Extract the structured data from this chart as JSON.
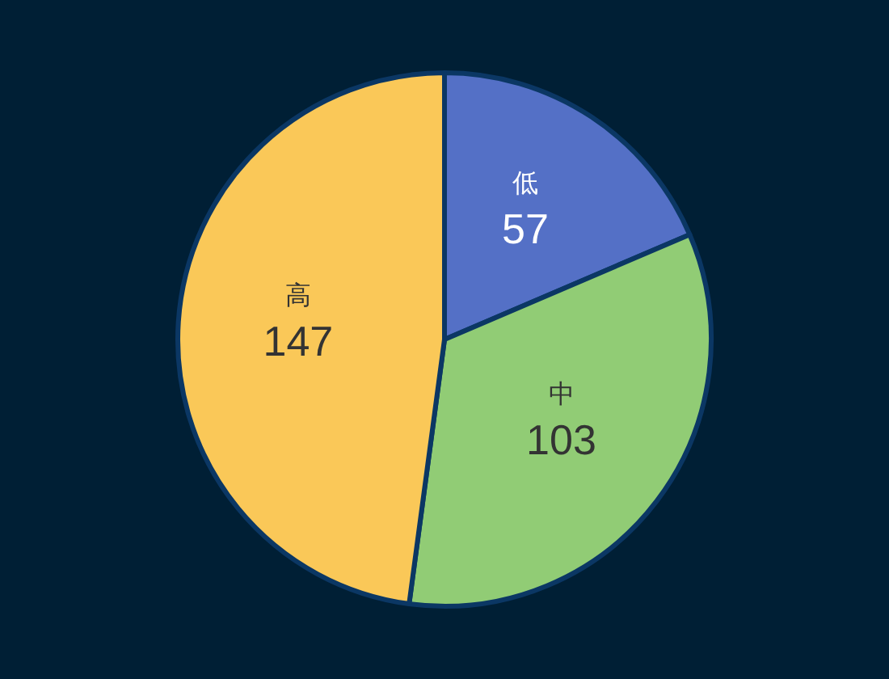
{
  "chart_data": {
    "type": "pie",
    "categories": [
      "低",
      "中",
      "高"
    ],
    "values": [
      57,
      103,
      147
    ],
    "colors": [
      "#5470c6",
      "#91cc75",
      "#fac858"
    ],
    "data_labels": true
  }
}
